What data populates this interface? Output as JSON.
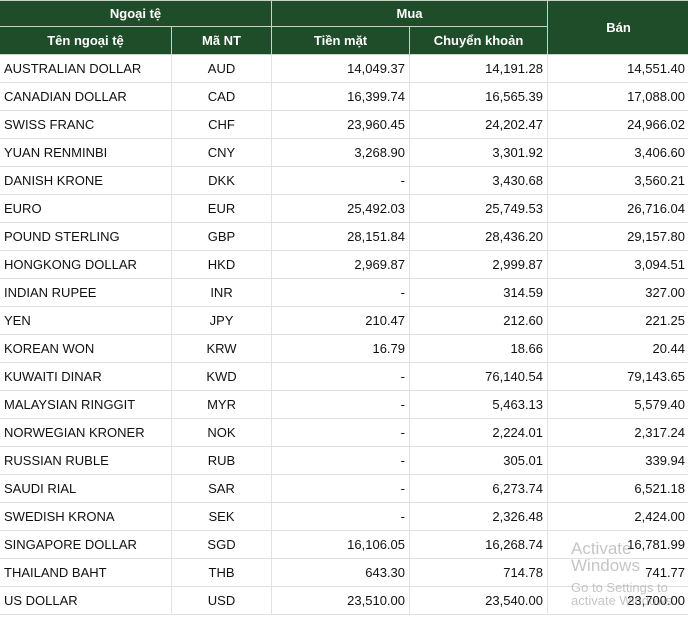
{
  "headers": {
    "foreign_currency": "Ngoại tệ",
    "buy": "Mua",
    "sell": "Bán",
    "currency_name": "Tên ngoại tệ",
    "code": "Mã NT",
    "cash": "Tiền mặt",
    "transfer": "Chuyển khoản"
  },
  "rows": [
    {
      "name": "AUSTRALIAN DOLLAR",
      "code": "AUD",
      "cash": "14,049.37",
      "transfer": "14,191.28",
      "sell": "14,551.40"
    },
    {
      "name": "CANADIAN DOLLAR",
      "code": "CAD",
      "cash": "16,399.74",
      "transfer": "16,565.39",
      "sell": "17,088.00"
    },
    {
      "name": "SWISS FRANC",
      "code": "CHF",
      "cash": "23,960.45",
      "transfer": "24,202.47",
      "sell": "24,966.02"
    },
    {
      "name": "YUAN RENMINBI",
      "code": "CNY",
      "cash": "3,268.90",
      "transfer": "3,301.92",
      "sell": "3,406.60"
    },
    {
      "name": "DANISH KRONE",
      "code": "DKK",
      "cash": "-",
      "transfer": "3,430.68",
      "sell": "3,560.21"
    },
    {
      "name": "EURO",
      "code": "EUR",
      "cash": "25,492.03",
      "transfer": "25,749.53",
      "sell": "26,716.04"
    },
    {
      "name": "POUND STERLING",
      "code": "GBP",
      "cash": "28,151.84",
      "transfer": "28,436.20",
      "sell": "29,157.80"
    },
    {
      "name": "HONGKONG DOLLAR",
      "code": "HKD",
      "cash": "2,969.87",
      "transfer": "2,999.87",
      "sell": "3,094.51"
    },
    {
      "name": "INDIAN RUPEE",
      "code": "INR",
      "cash": "-",
      "transfer": "314.59",
      "sell": "327.00"
    },
    {
      "name": "YEN",
      "code": "JPY",
      "cash": "210.47",
      "transfer": "212.60",
      "sell": "221.25"
    },
    {
      "name": "KOREAN WON",
      "code": "KRW",
      "cash": "16.79",
      "transfer": "18.66",
      "sell": "20.44"
    },
    {
      "name": "KUWAITI DINAR",
      "code": "KWD",
      "cash": "-",
      "transfer": "76,140.54",
      "sell": "79,143.65"
    },
    {
      "name": "MALAYSIAN RINGGIT",
      "code": "MYR",
      "cash": "-",
      "transfer": "5,463.13",
      "sell": "5,579.40"
    },
    {
      "name": "NORWEGIAN KRONER",
      "code": "NOK",
      "cash": "-",
      "transfer": "2,224.01",
      "sell": "2,317.24"
    },
    {
      "name": "RUSSIAN RUBLE",
      "code": "RUB",
      "cash": "-",
      "transfer": "305.01",
      "sell": "339.94"
    },
    {
      "name": "SAUDI RIAL",
      "code": "SAR",
      "cash": "-",
      "transfer": "6,273.74",
      "sell": "6,521.18"
    },
    {
      "name": "SWEDISH KRONA",
      "code": "SEK",
      "cash": "-",
      "transfer": "2,326.48",
      "sell": "2,424.00"
    },
    {
      "name": "SINGAPORE DOLLAR",
      "code": "SGD",
      "cash": "16,106.05",
      "transfer": "16,268.74",
      "sell": "16,781.99"
    },
    {
      "name": "THAILAND BAHT",
      "code": "THB",
      "cash": "643.30",
      "transfer": "714.78",
      "sell": "741.77"
    },
    {
      "name": "US DOLLAR",
      "code": "USD",
      "cash": "23,510.00",
      "transfer": "23,540.00",
      "sell": "23,700.00"
    }
  ],
  "watermark": {
    "line1": "Activate Windows",
    "line2": "Go to Settings to activate Windows."
  }
}
